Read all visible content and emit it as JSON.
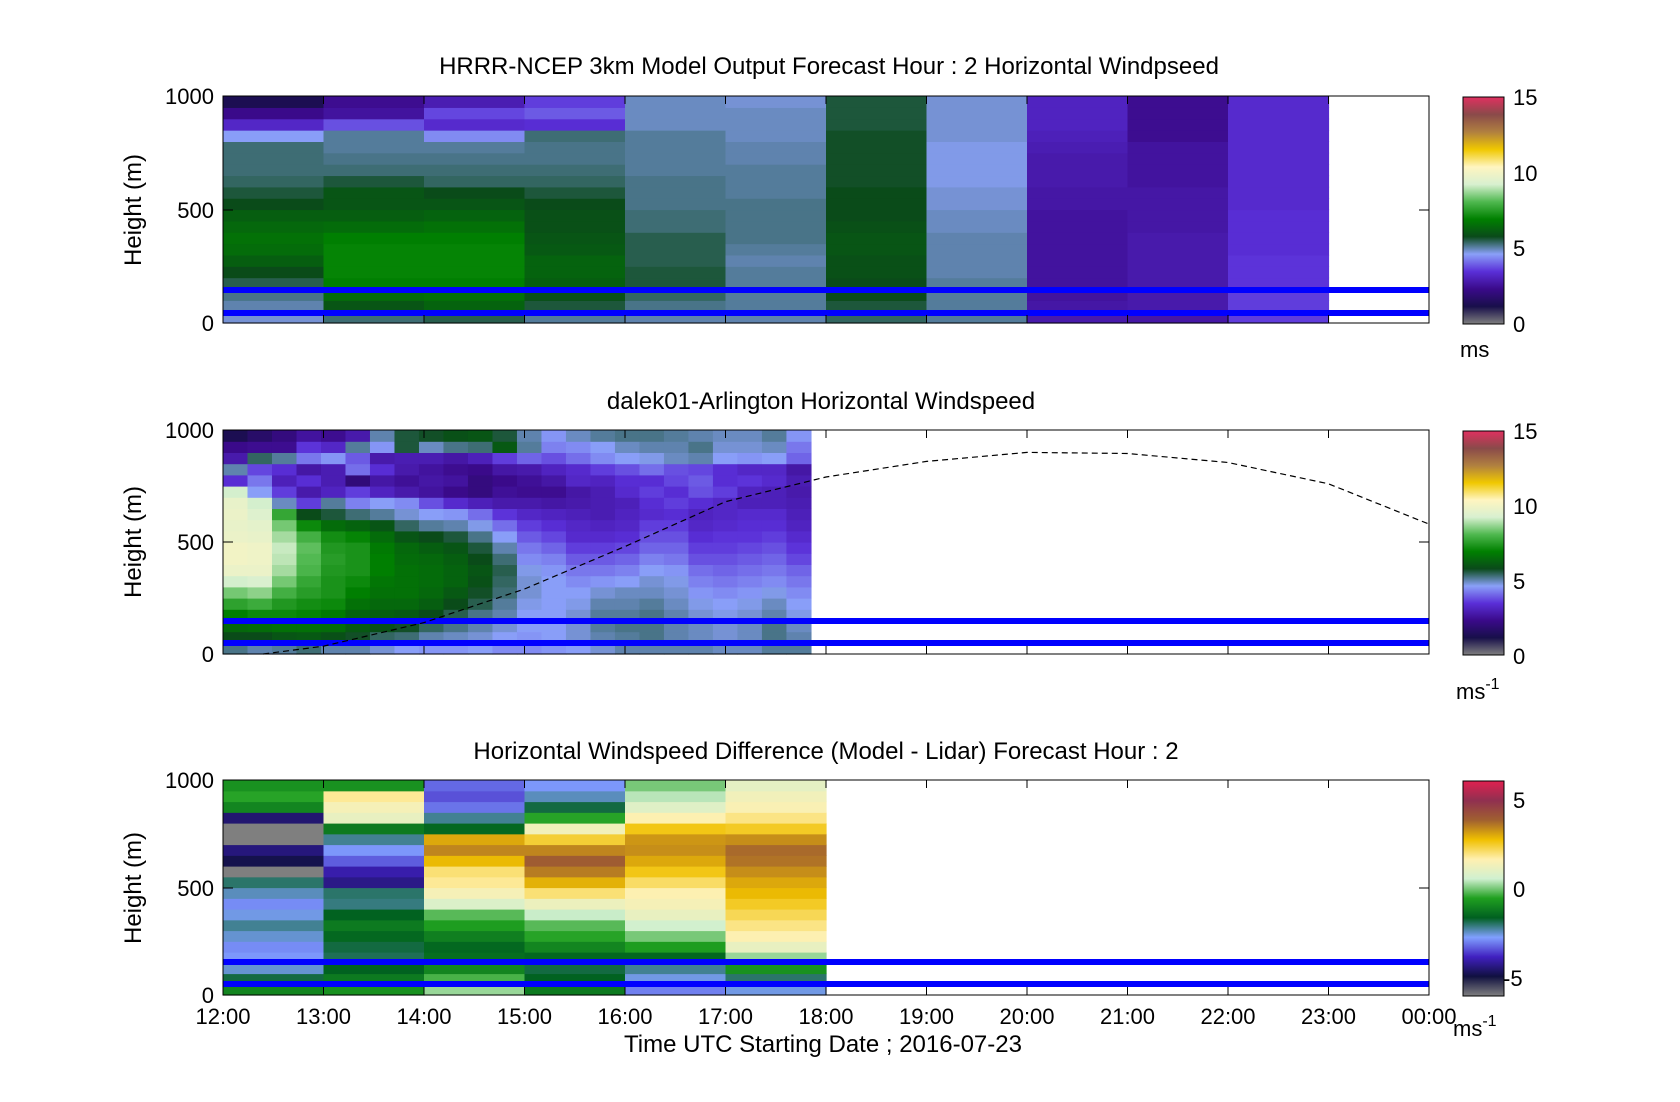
{
  "palette": {
    "main_stops": [
      "#7f7f7f",
      "#180f4a",
      "#3a0a8a",
      "#5a2fd8",
      "#8aa0f8",
      "#0a4a1a",
      "#008000",
      "#4fb84f",
      "#d8f0d0",
      "#fff5c0",
      "#f0c800",
      "#b08040",
      "#8a4a4a",
      "#e03060"
    ],
    "diff_stops": [
      "#7f7f7f",
      "#101040",
      "#4020c0",
      "#80a0ff",
      "#006020",
      "#20a020",
      "#d0f0d0",
      "#fff0b0",
      "#f0c000",
      "#a06030",
      "#903050",
      "#e02050"
    ],
    "lidar_line": "#0000ff",
    "curve": "#000000"
  },
  "x_axis": {
    "ticks": [
      "12:00",
      "13:00",
      "14:00",
      "15:00",
      "16:00",
      "17:00",
      "18:00",
      "19:00",
      "20:00",
      "21:00",
      "22:00",
      "23:00",
      "00:00"
    ],
    "label": "Time UTC  Starting Date ; 2016-07-23"
  },
  "chart_data": [
    {
      "type": "heatmap",
      "title": "HRRR-NCEP 3km Model Output   Forecast Hour : 2 Horizontal Windpseed",
      "ylabel": "Height (m)",
      "ylim": [
        0,
        1000
      ],
      "y_ticks": [
        "0",
        "500",
        "1000"
      ],
      "x_range_hours": [
        12,
        24
      ],
      "data_end_hour": 23,
      "colorbar": {
        "range": [
          0,
          15
        ],
        "ticks": [
          "0",
          "5",
          "10",
          "15"
        ],
        "unit": "ms",
        "unit_sup": ""
      },
      "reference_lines_m": [
        50,
        150
      ],
      "profiles_ms": [
        [
          4.8,
          5.0,
          5.2,
          5.5,
          5.8,
          6.2,
          6.5,
          6.6,
          6.4,
          6.2,
          5.8,
          5.6,
          5.4,
          5.3,
          5.3,
          5.3,
          4.6,
          3.2,
          2.3,
          1.3
        ],
        [
          5.3,
          6.0,
          6.5,
          6.9,
          7.0,
          7.0,
          7.0,
          6.9,
          6.5,
          6.2,
          6.0,
          6.0,
          5.6,
          5.3,
          5.2,
          5.1,
          5.1,
          3.8,
          2.6,
          2.4
        ],
        [
          5.5,
          6.3,
          6.6,
          6.9,
          7.0,
          7.0,
          7.0,
          6.9,
          6.6,
          6.3,
          6.0,
          5.8,
          5.4,
          5.3,
          5.2,
          5.1,
          4.4,
          3.3,
          3.7,
          2.9
        ],
        [
          5.1,
          5.6,
          5.9,
          6.2,
          6.3,
          6.3,
          6.1,
          6.0,
          5.9,
          5.9,
          5.8,
          5.6,
          5.4,
          5.3,
          5.2,
          5.2,
          5.3,
          3.4,
          3.9,
          3.6
        ],
        [
          5.0,
          5.2,
          5.4,
          5.6,
          5.6,
          5.5,
          5.5,
          5.5,
          5.3,
          5.3,
          5.2,
          5.2,
          5.2,
          5.1,
          5.1,
          5.1,
          5.1,
          4.9,
          4.9,
          4.9
        ],
        [
          5.0,
          5.1,
          5.1,
          5.1,
          5.1,
          5.0,
          5.1,
          5.2,
          5.2,
          5.2,
          5.2,
          5.1,
          5.1,
          5.1,
          5.0,
          5.0,
          4.9,
          4.9,
          4.9,
          4.8
        ],
        [
          5.4,
          5.6,
          5.8,
          5.8,
          5.9,
          5.9,
          6.0,
          6.0,
          5.9,
          5.8,
          5.8,
          5.8,
          5.7,
          5.7,
          5.7,
          5.7,
          5.7,
          5.6,
          5.6,
          5.6
        ],
        [
          5.1,
          5.1,
          5.1,
          5.1,
          5.0,
          5.0,
          5.0,
          5.0,
          4.9,
          4.9,
          4.8,
          4.8,
          4.7,
          4.7,
          4.7,
          4.7,
          4.8,
          4.8,
          4.8,
          4.8
        ],
        [
          2.8,
          2.7,
          2.6,
          2.6,
          2.6,
          2.6,
          2.6,
          2.6,
          2.6,
          2.6,
          2.7,
          2.7,
          2.8,
          2.8,
          2.8,
          2.9,
          3.0,
          3.1,
          3.1,
          3.1
        ],
        [
          2.7,
          2.8,
          2.8,
          2.8,
          2.8,
          2.8,
          2.8,
          2.8,
          2.7,
          2.7,
          2.7,
          2.7,
          2.6,
          2.6,
          2.6,
          2.6,
          2.4,
          2.4,
          2.4,
          2.4
        ],
        [
          3.6,
          3.6,
          3.6,
          3.5,
          3.5,
          3.5,
          3.4,
          3.4,
          3.4,
          3.4,
          3.3,
          3.3,
          3.3,
          3.3,
          3.3,
          3.3,
          3.3,
          3.3,
          3.3,
          3.3
        ]
      ]
    },
    {
      "type": "heatmap",
      "title": "dalek01-Arlington  Horizontal Windspeed",
      "ylabel": "Height (m)",
      "ylim": [
        0,
        1000
      ],
      "y_ticks": [
        "0",
        "500",
        "1000"
      ],
      "x_range_hours": [
        12,
        24
      ],
      "data_end_hour": 17.85,
      "colorbar": {
        "range": [
          0,
          15
        ],
        "ticks": [
          "0",
          "5",
          "10",
          "15"
        ],
        "unit": "ms",
        "unit_sup": "-1"
      },
      "reference_lines_m": [
        50,
        150
      ],
      "profiles_ms": [
        [
          5.2,
          5.8,
          6.4,
          6.9,
          7.6,
          8.4,
          9.2,
          9.8,
          10.0,
          10.0,
          9.8,
          9.7,
          9.8,
          9.7,
          9.2,
          3.4,
          5.0,
          2.8,
          2.3,
          1.3
        ],
        [
          5.0,
          5.8,
          6.5,
          7.1,
          7.8,
          8.6,
          9.3,
          9.8,
          9.9,
          9.9,
          9.7,
          9.6,
          9.4,
          9.2,
          4.6,
          4.2,
          3.7,
          5.4,
          2.4,
          1.7
        ],
        [
          5.1,
          6.0,
          6.6,
          7.1,
          7.4,
          7.9,
          8.4,
          8.8,
          9.0,
          9.1,
          8.8,
          8.4,
          7.7,
          4.9,
          3.6,
          3.0,
          3.4,
          5.1,
          2.4,
          2.1
        ],
        [
          5.3,
          6.1,
          6.6,
          7.0,
          7.2,
          7.5,
          7.7,
          8.0,
          8.1,
          8.2,
          7.9,
          7.1,
          5.8,
          3.6,
          2.8,
          3.4,
          2.7,
          4.2,
          3.5,
          2.6
        ],
        [
          5.0,
          5.9,
          6.5,
          6.8,
          7.1,
          7.3,
          7.3,
          7.4,
          7.5,
          7.4,
          7.2,
          6.5,
          5.6,
          5.1,
          3.1,
          2.9,
          2.9,
          4.5,
          3.2,
          2.4
        ],
        [
          5.0,
          5.7,
          6.1,
          6.3,
          6.6,
          6.9,
          7.1,
          7.3,
          7.3,
          7.3,
          7.0,
          6.3,
          5.3,
          4.3,
          3.6,
          2.0,
          4.1,
          3.9,
          5.1,
          2.8
        ],
        [
          4.8,
          5.4,
          5.9,
          6.2,
          6.4,
          6.6,
          6.7,
          6.9,
          6.9,
          6.8,
          6.5,
          6.0,
          5.1,
          4.6,
          3.1,
          2.7,
          3.4,
          2.8,
          4.5,
          5.0
        ],
        [
          4.6,
          5.3,
          5.7,
          6.1,
          6.4,
          6.6,
          6.6,
          6.6,
          6.5,
          6.4,
          6.0,
          5.4,
          4.8,
          4.4,
          2.8,
          2.5,
          2.8,
          2.9,
          5.6,
          5.6
        ],
        [
          4.5,
          5.0,
          5.4,
          5.8,
          6.2,
          6.4,
          6.5,
          6.5,
          6.4,
          6.2,
          5.8,
          5.1,
          4.6,
          3.8,
          2.6,
          2.7,
          2.6,
          2.9,
          4.9,
          5.7
        ],
        [
          4.5,
          4.9,
          5.2,
          5.5,
          5.8,
          6.1,
          6.3,
          6.3,
          6.2,
          6.0,
          5.6,
          5.0,
          4.5,
          3.3,
          2.3,
          2.6,
          2.4,
          2.7,
          5.2,
          5.9
        ],
        [
          4.6,
          4.8,
          5.0,
          5.2,
          5.5,
          5.7,
          5.9,
          6.0,
          5.8,
          5.6,
          5.2,
          4.7,
          4.1,
          3.0,
          2.1,
          2.1,
          2.3,
          3.0,
          5.3,
          6.0
        ],
        [
          4.4,
          4.6,
          4.8,
          5.0,
          5.1,
          5.3,
          5.4,
          5.5,
          5.3,
          5.0,
          4.6,
          4.1,
          3.5,
          2.8,
          2.5,
          2.3,
          2.7,
          3.6,
          6.1,
          5.6
        ],
        [
          4.4,
          4.5,
          4.6,
          4.6,
          4.7,
          4.8,
          4.8,
          4.7,
          4.4,
          4.2,
          3.9,
          3.6,
          3.2,
          2.8,
          2.4,
          2.5,
          2.8,
          4.0,
          5.1,
          5.0
        ],
        [
          4.5,
          4.6,
          4.6,
          4.6,
          4.6,
          4.6,
          4.6,
          4.5,
          4.3,
          4.0,
          3.7,
          3.4,
          3.1,
          2.7,
          2.4,
          2.7,
          3.1,
          3.8,
          4.3,
          4.5
        ],
        [
          4.6,
          4.8,
          4.8,
          4.8,
          4.7,
          4.6,
          4.4,
          4.2,
          3.9,
          3.6,
          3.3,
          3.2,
          3.0,
          2.8,
          2.7,
          3.2,
          3.3,
          4.1,
          4.4,
          4.9
        ],
        [
          4.8,
          5.0,
          5.1,
          5.1,
          5.0,
          4.8,
          4.5,
          4.2,
          3.9,
          3.6,
          3.3,
          3.1,
          2.9,
          2.9,
          2.9,
          3.1,
          3.6,
          4.4,
          4.6,
          5.1
        ],
        [
          5.0,
          5.1,
          5.2,
          5.1,
          5.0,
          4.9,
          4.6,
          4.3,
          4.0,
          3.7,
          3.4,
          3.2,
          3.1,
          3.0,
          3.3,
          3.4,
          3.8,
          4.6,
          4.9,
          5.2
        ],
        [
          5.0,
          5.2,
          5.2,
          5.2,
          5.1,
          4.9,
          4.8,
          4.6,
          4.3,
          4.0,
          3.8,
          3.6,
          3.3,
          3.4,
          3.6,
          3.4,
          4.1,
          4.7,
          5.0,
          5.2
        ],
        [
          5.0,
          5.0,
          5.0,
          5.0,
          4.9,
          4.8,
          4.7,
          4.5,
          4.2,
          4.0,
          3.8,
          3.6,
          3.4,
          3.6,
          3.4,
          3.7,
          3.8,
          4.9,
          5.0,
          5.1
        ],
        [
          5.0,
          4.9,
          4.9,
          4.8,
          4.7,
          4.5,
          4.3,
          4.1,
          3.8,
          3.6,
          3.4,
          3.2,
          3.1,
          3.4,
          3.8,
          3.9,
          3.7,
          5.0,
          5.2,
          5.0
        ],
        [
          4.9,
          4.8,
          4.8,
          4.7,
          4.6,
          4.4,
          4.2,
          4.0,
          3.8,
          3.6,
          3.5,
          3.3,
          3.2,
          3.2,
          3.6,
          3.4,
          3.4,
          4.6,
          4.8,
          4.9
        ],
        [
          4.9,
          4.9,
          4.9,
          4.8,
          4.7,
          4.5,
          4.3,
          4.1,
          3.9,
          3.7,
          3.5,
          3.4,
          3.3,
          3.0,
          3.1,
          3.5,
          3.2,
          4.5,
          4.8,
          4.9
        ],
        [
          5.1,
          5.2,
          5.2,
          5.0,
          4.9,
          4.7,
          4.4,
          4.2,
          4.0,
          3.8,
          3.6,
          3.4,
          3.3,
          3.0,
          3.0,
          3.3,
          3.2,
          4.6,
          4.9,
          5.1
        ],
        [
          5.1,
          5.0,
          4.9,
          4.7,
          4.6,
          4.4,
          4.2,
          4.0,
          3.7,
          3.5,
          3.3,
          3.1,
          3.0,
          2.9,
          2.8,
          2.9,
          2.7,
          4.0,
          4.2,
          4.5
        ]
      ],
      "curve_points": [
        [
          12.4,
          0
        ],
        [
          13.0,
          35
        ],
        [
          14.0,
          140
        ],
        [
          15.0,
          290
        ],
        [
          16.0,
          480
        ],
        [
          17.0,
          680
        ],
        [
          18.0,
          790
        ],
        [
          19.0,
          860
        ],
        [
          20.0,
          900
        ],
        [
          21.0,
          895
        ],
        [
          22.0,
          855
        ],
        [
          23.0,
          760
        ],
        [
          24.0,
          580
        ]
      ]
    },
    {
      "type": "heatmap",
      "title": "Horizontal Windspeed Difference (Model - Lidar) Forecast Hour : 2",
      "ylabel": "Height (m)",
      "ylim": [
        0,
        1000
      ],
      "y_ticks": [
        "0",
        "500",
        "1000"
      ],
      "x_range_hours": [
        12,
        24
      ],
      "data_end_hour": 18,
      "colorbar": {
        "range": [
          -6,
          6
        ],
        "ticks": [
          "-5",
          "0",
          "5"
        ],
        "unit": "ms",
        "unit_sup": "-1"
      },
      "reference_lines_m": [
        50,
        150
      ],
      "profiles_ms": [
        [
          -1.0,
          -1.8,
          -2.5,
          -2.8,
          -2.9,
          -2.5,
          -2.2,
          -2.6,
          -2.9,
          -2.4,
          -2.0,
          -6.0,
          -4.8,
          -4.4,
          -6.0,
          -6.0,
          -4.5,
          -1.0,
          -0.5,
          -0.8
        ],
        [
          -0.8,
          -1.2,
          -1.6,
          -1.9,
          -1.8,
          -1.5,
          -1.2,
          -1.6,
          -2.1,
          -2.0,
          -4.3,
          -4.0,
          -3.3,
          -2.8,
          -2.2,
          -1.2,
          1.1,
          1.4,
          1.8,
          -0.8
        ],
        [
          0.2,
          -0.3,
          -1.0,
          -1.4,
          -1.5,
          -1.1,
          -0.6,
          -0.2,
          0.8,
          1.4,
          1.8,
          2.0,
          2.8,
          3.4,
          3.0,
          -1.5,
          -2.2,
          -3.1,
          -3.4,
          -3.2
        ],
        [
          -1.2,
          -1.6,
          -1.8,
          -1.5,
          -1.0,
          -0.5,
          -0.2,
          0.5,
          1.2,
          2.0,
          2.9,
          3.5,
          3.9,
          3.4,
          2.4,
          1.3,
          -0.5,
          -1.8,
          -2.4,
          -2.8
        ],
        [
          -3.0,
          -2.6,
          -2.2,
          -1.5,
          -0.6,
          0.0,
          0.6,
          1.1,
          1.4,
          1.6,
          2.1,
          2.6,
          3.0,
          3.3,
          3.2,
          2.6,
          1.6,
          0.9,
          0.4,
          0.0
        ],
        [
          -2.6,
          -2.0,
          -0.8,
          0.2,
          1.1,
          1.6,
          1.9,
          2.2,
          2.5,
          2.8,
          3.0,
          3.3,
          3.6,
          3.7,
          3.3,
          2.5,
          1.9,
          1.5,
          1.3,
          1.0
        ]
      ]
    }
  ]
}
